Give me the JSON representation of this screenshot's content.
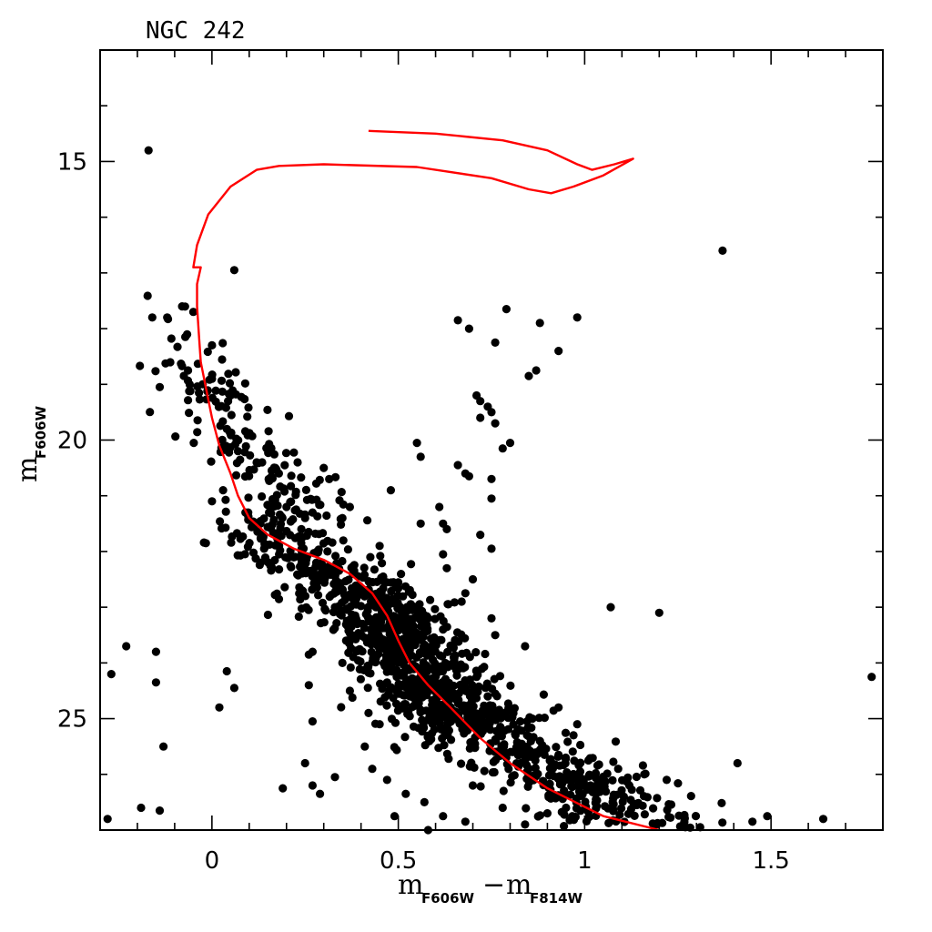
{
  "chart_data": {
    "type": "scatter",
    "title": "NGC 242",
    "xlabel": {
      "left_main": "m",
      "left_sub": "F606W",
      "op": "−",
      "right_main": "m",
      "right_sub": "F814W"
    },
    "ylabel": {
      "main": "m",
      "sub": "F606W"
    },
    "xlim": [
      -0.3,
      1.8
    ],
    "ylim": [
      13,
      27
    ],
    "y_inverted": true,
    "x_ticks": [
      "0",
      "0.5",
      "1",
      "1.5"
    ],
    "x_tick_values": [
      0,
      0.5,
      1,
      1.5
    ],
    "y_ticks": [
      "15",
      "20",
      "25"
    ],
    "y_tick_values": [
      15,
      20,
      25
    ],
    "isochrone_color": "#ff0000",
    "point_color": "#000000",
    "isochrone": [
      [
        0.42,
        14.45
      ],
      [
        0.6,
        14.5
      ],
      [
        0.78,
        14.62
      ],
      [
        0.9,
        14.8
      ],
      [
        0.98,
        15.05
      ],
      [
        1.02,
        15.15
      ],
      [
        1.08,
        15.05
      ],
      [
        1.13,
        14.95
      ],
      [
        1.05,
        15.25
      ],
      [
        0.97,
        15.45
      ],
      [
        0.91,
        15.57
      ],
      [
        0.85,
        15.5
      ],
      [
        0.75,
        15.3
      ],
      [
        0.55,
        15.1
      ],
      [
        0.3,
        15.05
      ],
      [
        0.18,
        15.08
      ],
      [
        0.12,
        15.15
      ],
      [
        0.05,
        15.45
      ],
      [
        -0.01,
        15.95
      ],
      [
        -0.04,
        16.5
      ],
      [
        -0.05,
        16.9
      ],
      [
        -0.03,
        16.9
      ],
      [
        -0.04,
        17.2
      ],
      [
        -0.04,
        17.6
      ],
      [
        -0.035,
        18.1
      ],
      [
        -0.03,
        18.6
      ],
      [
        -0.015,
        19.1
      ],
      [
        0.0,
        19.6
      ],
      [
        0.02,
        20.1
      ],
      [
        0.05,
        20.6
      ],
      [
        0.07,
        21.0
      ],
      [
        0.1,
        21.4
      ],
      [
        0.15,
        21.7
      ],
      [
        0.22,
        21.95
      ],
      [
        0.3,
        22.15
      ],
      [
        0.37,
        22.4
      ],
      [
        0.43,
        22.75
      ],
      [
        0.47,
        23.15
      ],
      [
        0.5,
        23.6
      ],
      [
        0.53,
        24.0
      ],
      [
        0.58,
        24.4
      ],
      [
        0.64,
        24.8
      ],
      [
        0.72,
        25.35
      ],
      [
        0.8,
        25.8
      ],
      [
        0.9,
        26.25
      ],
      [
        1.05,
        26.75
      ],
      [
        1.2,
        27.0
      ]
    ],
    "points": [
      [
        -0.17,
        14.8
      ],
      [
        1.37,
        16.6
      ],
      [
        0.06,
        16.95
      ],
      [
        -0.16,
        17.8
      ],
      [
        -0.12,
        17.8
      ],
      [
        -0.08,
        17.6
      ],
      [
        -0.05,
        17.7
      ],
      [
        -0.14,
        19.05
      ],
      [
        0.66,
        17.85
      ],
      [
        0.69,
        18.0
      ],
      [
        0.79,
        17.65
      ],
      [
        0.88,
        17.9
      ],
      [
        0.98,
        17.8
      ],
      [
        0.76,
        18.25
      ],
      [
        0.93,
        18.4
      ],
      [
        0.87,
        18.75
      ],
      [
        0.85,
        18.85
      ],
      [
        0.71,
        19.2
      ],
      [
        0.72,
        19.3
      ],
      [
        0.74,
        19.4
      ],
      [
        0.75,
        19.5
      ],
      [
        0.72,
        19.6
      ],
      [
        0.76,
        19.7
      ],
      [
        0.55,
        20.05
      ],
      [
        0.8,
        20.05
      ],
      [
        0.78,
        20.15
      ],
      [
        0.56,
        20.3
      ],
      [
        0.66,
        20.45
      ],
      [
        0.68,
        20.6
      ],
      [
        0.69,
        20.65
      ],
      [
        0.75,
        20.7
      ],
      [
        0.75,
        21.05
      ],
      [
        0.61,
        21.2
      ],
      [
        0.48,
        20.9
      ],
      [
        0.56,
        21.5
      ],
      [
        0.62,
        21.5
      ],
      [
        0.63,
        21.6
      ],
      [
        0.72,
        21.7
      ],
      [
        0.75,
        21.95
      ],
      [
        1.07,
        23.0
      ],
      [
        1.2,
        23.1
      ],
      [
        0.75,
        23.2
      ],
      [
        0.76,
        23.5
      ],
      [
        -0.23,
        23.7
      ],
      [
        -0.15,
        23.8
      ],
      [
        -0.27,
        24.2
      ],
      [
        -0.15,
        24.35
      ],
      [
        0.04,
        24.15
      ],
      [
        0.06,
        24.45
      ],
      [
        0.02,
        24.8
      ],
      [
        0.27,
        23.8
      ],
      [
        0.26,
        23.85
      ],
      [
        0.26,
        24.4
      ],
      [
        0.27,
        25.05
      ],
      [
        -0.13,
        25.5
      ],
      [
        0.25,
        25.8
      ],
      [
        0.19,
        26.25
      ],
      [
        0.27,
        26.2
      ],
      [
        0.33,
        26.05
      ],
      [
        -0.19,
        26.6
      ],
      [
        -0.14,
        26.65
      ],
      [
        -0.28,
        26.8
      ],
      [
        0.29,
        26.35
      ],
      [
        1.77,
        24.25
      ],
      [
        1.41,
        25.8
      ],
      [
        1.49,
        26.75
      ],
      [
        1.64,
        26.8
      ],
      [
        1.45,
        26.85
      ],
      [
        1.27,
        26.95
      ],
      [
        1.31,
        26.95
      ],
      [
        0.84,
        23.7
      ],
      [
        0.67,
        22.9
      ],
      [
        0.74,
        24.6
      ],
      [
        0.7,
        25.1
      ],
      [
        0.68,
        24.85
      ],
      [
        0.35,
        24.0
      ],
      [
        0.0,
        18.3
      ],
      [
        0.0,
        18.9
      ],
      [
        0.05,
        19.2
      ],
      [
        0.04,
        19.8
      ],
      [
        0.07,
        20.2
      ],
      [
        0.12,
        20.4
      ],
      [
        0.17,
        20.5
      ],
      [
        0.09,
        21.3
      ],
      [
        0.2,
        21.2
      ],
      [
        0.25,
        21.4
      ],
      [
        0.24,
        21.6
      ],
      [
        0.18,
        21.9
      ],
      [
        0.35,
        21.4
      ],
      [
        0.37,
        21.2
      ],
      [
        0.27,
        21.3
      ],
      [
        0.3,
        20.5
      ],
      [
        0.23,
        20.4
      ],
      [
        0.0,
        21.1
      ],
      [
        0.03,
        20.9
      ],
      [
        0.45,
        21.9
      ],
      [
        0.62,
        22.05
      ],
      [
        0.63,
        22.3
      ],
      [
        0.7,
        22.5
      ],
      [
        0.68,
        22.75
      ],
      [
        0.31,
        22.0
      ],
      [
        0.28,
        22.2
      ],
      [
        0.18,
        22.05
      ],
      [
        0.14,
        21.95
      ],
      [
        0.58,
        23.2
      ],
      [
        0.62,
        23.4
      ],
      [
        0.39,
        23.3
      ],
      [
        0.36,
        23.6
      ],
      [
        0.33,
        23.0
      ],
      [
        0.37,
        24.5
      ],
      [
        0.42,
        24.9
      ],
      [
        0.45,
        25.1
      ],
      [
        0.41,
        25.5
      ],
      [
        0.43,
        25.9
      ],
      [
        0.47,
        26.1
      ],
      [
        0.52,
        26.35
      ],
      [
        0.57,
        26.5
      ],
      [
        0.62,
        26.75
      ],
      [
        0.68,
        26.85
      ],
      [
        0.78,
        26.6
      ],
      [
        0.84,
        26.9
      ],
      [
        0.95,
        26.6
      ],
      [
        1.03,
        26.45
      ],
      [
        1.12,
        26.2
      ],
      [
        1.16,
        26.0
      ],
      [
        1.01,
        25.75
      ],
      [
        0.93,
        25.65
      ],
      [
        0.97,
        25.3
      ],
      [
        0.88,
        25.4
      ],
      [
        0.82,
        25.2
      ],
      [
        0.86,
        25.0
      ],
      [
        0.77,
        24.95
      ],
      [
        0.93,
        24.8
      ],
      [
        0.98,
        25.1
      ],
      [
        0.55,
        24.3
      ],
      [
        0.49,
        26.75
      ],
      [
        0.58,
        27.0
      ],
      [
        0.7,
        26.2
      ],
      [
        0.9,
        26.7
      ],
      [
        1.09,
        25.9
      ],
      [
        1.22,
        26.1
      ],
      [
        1.14,
        26.55
      ]
    ],
    "clusters": [
      {
        "x0": -0.1,
        "y0": 18.5,
        "x1": 0.3,
        "y1": 21.8,
        "sx": 0.06,
        "sy": 0.45,
        "n": 180
      },
      {
        "x0": 0.1,
        "y0": 21.5,
        "x1": 0.55,
        "y1": 23.5,
        "sx": 0.07,
        "sy": 0.3,
        "n": 260
      },
      {
        "x0": 0.4,
        "y0": 22.8,
        "x1": 0.65,
        "y1": 25.0,
        "sx": 0.07,
        "sy": 0.35,
        "n": 520
      },
      {
        "x0": 0.55,
        "y0": 24.3,
        "x1": 1.05,
        "y1": 26.6,
        "sx": 0.08,
        "sy": 0.3,
        "n": 340
      },
      {
        "x0": 0.85,
        "y0": 25.8,
        "x1": 1.3,
        "y1": 26.95,
        "sx": 0.06,
        "sy": 0.18,
        "n": 90
      }
    ]
  }
}
